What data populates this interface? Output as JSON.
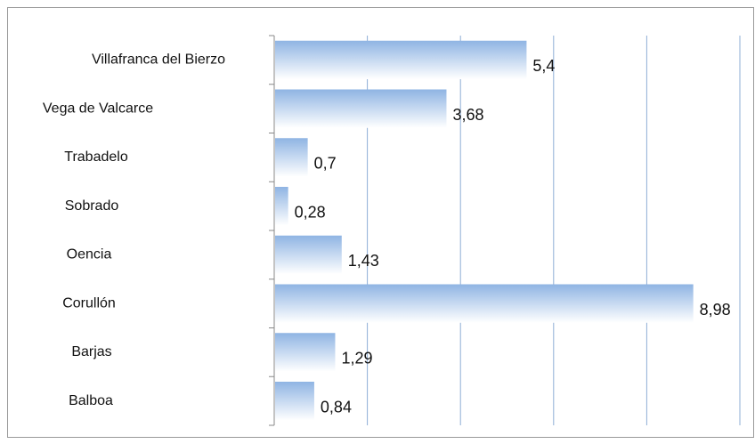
{
  "chart_data": {
    "type": "bar",
    "orientation": "horizontal",
    "categories": [
      "Villafranca del Bierzo",
      "Vega de Valcarce",
      "Trabadelo",
      "Sobrado",
      "Oencia",
      "Corullón",
      "Barjas",
      "Balboa"
    ],
    "values": [
      5.4,
      3.68,
      0.7,
      0.28,
      1.43,
      8.98,
      1.29,
      0.84
    ],
    "value_labels": [
      "5,4",
      "3,68",
      "0,7",
      "0,28",
      "1,43",
      "8,98",
      "1,29",
      "0,84"
    ],
    "color": "#8fb4e3",
    "xlim": [
      0,
      10
    ],
    "xticks": [
      0,
      2,
      4,
      6,
      8,
      10
    ],
    "grid": true
  }
}
